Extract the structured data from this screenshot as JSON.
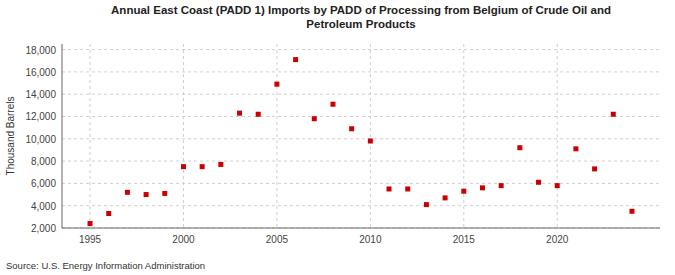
{
  "chart_data": {
    "type": "scatter",
    "title": "Annual East Coast (PADD 1) Imports by PADD of Processing from Belgium of Crude Oil and\nPetroleum Products",
    "y_label": "Thousand Barrels",
    "source": "Source: U.S. Energy Information Administration",
    "color": "#cc0000",
    "marker": "square",
    "grid": true,
    "xlim": [
      1993.5,
      2025.5
    ],
    "ylim": [
      2000,
      18500
    ],
    "xticks": [
      1995,
      2000,
      2005,
      2010,
      2015,
      2020
    ],
    "yticks": [
      {
        "value": 2000,
        "label": "2,000"
      },
      {
        "value": 4000,
        "label": "4,000"
      },
      {
        "value": 6000,
        "label": "6,000"
      },
      {
        "value": 8000,
        "label": "8,000"
      },
      {
        "value": 10000,
        "label": "10,000"
      },
      {
        "value": 12000,
        "label": "12,000"
      },
      {
        "value": 14000,
        "label": "14,000"
      },
      {
        "value": 16000,
        "label": "16,000"
      },
      {
        "value": 18000,
        "label": "18,000"
      }
    ],
    "x": [
      1995,
      1996,
      1997,
      1998,
      1999,
      2000,
      2001,
      2002,
      2003,
      2004,
      2005,
      2006,
      2007,
      2008,
      2009,
      2010,
      2011,
      2012,
      2013,
      2014,
      2015,
      2016,
      2017,
      2018,
      2019,
      2020,
      2021,
      2022,
      2023,
      2024
    ],
    "values": [
      2400,
      3300,
      5200,
      5000,
      5100,
      7500,
      7500,
      7700,
      12300,
      12200,
      14900,
      17100,
      11800,
      13100,
      10900,
      9800,
      5500,
      5500,
      4100,
      4700,
      5300,
      5600,
      5800,
      9200,
      6100,
      5800,
      9100,
      7300,
      12200,
      3500
    ]
  }
}
